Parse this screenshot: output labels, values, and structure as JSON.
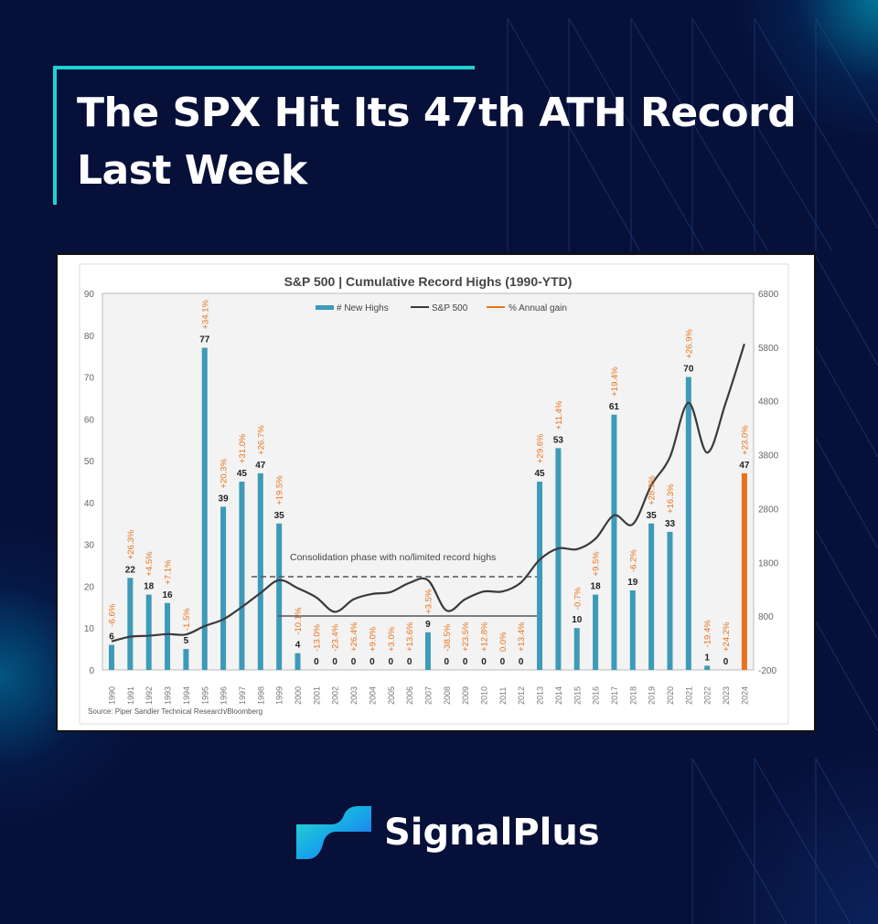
{
  "header": {
    "title": "The SPX Hit Its 47th ATH Record Last Week"
  },
  "brand": {
    "name": "SignalPlus"
  },
  "colors": {
    "bg": "#061039",
    "accent": "#19d3d6",
    "bar": "#3d9ab8",
    "bar_highlight": "#e8731c",
    "gain": "#e8731c",
    "line": "#3a3a3a"
  },
  "chart_data": {
    "type": "bar",
    "title": "S&P 500 | Cumulative Record Highs (1990-YTD)",
    "legend": [
      "# New Highs",
      "S&P 500",
      "% Annual gain"
    ],
    "legend_position": "top-center",
    "categories": [
      "1990",
      "1991",
      "1992",
      "1993",
      "1994",
      "1995",
      "1996",
      "1997",
      "1998",
      "1999",
      "2000",
      "2001",
      "2002",
      "2003",
      "2004",
      "2005",
      "2006",
      "2007",
      "2008",
      "2009",
      "2010",
      "2011",
      "2012",
      "2013",
      "2014",
      "2015",
      "2016",
      "2017",
      "2018",
      "2019",
      "2020",
      "2021",
      "2022",
      "2023",
      "2024"
    ],
    "series": [
      {
        "name": "# New Highs",
        "axis": "left",
        "values": [
          6,
          22,
          18,
          16,
          5,
          77,
          39,
          45,
          47,
          35,
          4,
          0,
          0,
          0,
          0,
          0,
          0,
          9,
          0,
          0,
          0,
          0,
          0,
          45,
          53,
          10,
          18,
          61,
          19,
          35,
          33,
          70,
          1,
          0,
          47
        ]
      },
      {
        "name": "S&P 500",
        "axis": "right",
        "values": [
          330,
          417,
          436,
          466,
          459,
          615,
          740,
          970,
          1229,
          1469,
          1320,
          1148,
          880,
          1112,
          1212,
          1248,
          1418,
          1468,
          903,
          1115,
          1258,
          1258,
          1426,
          1848,
          2059,
          2044,
          2239,
          2674,
          2507,
          3231,
          3756,
          4766,
          3840,
          4770,
          5860
        ]
      },
      {
        "name": "% Annual gain",
        "labels": [
          "-6.6%",
          "+26.3%",
          "+4.5%",
          "+7.1%",
          "-1.5%",
          "+34.1%",
          "+20.3%",
          "+31.0%",
          "+26.7%",
          "+19.5%",
          "-10.1%",
          "-13.0%",
          "-23.4%",
          "+26.4%",
          "+9.0%",
          "+3.0%",
          "+13.6%",
          "+3.5%",
          "-38.5%",
          "+23.5%",
          "+12.8%",
          "0.0%",
          "+13.4%",
          "+29.6%",
          "+11.4%",
          "-0.7%",
          "+9.5%",
          "+19.4%",
          "-6.2%",
          "+28.9%",
          "+16.3%",
          "+26.9%",
          "-19.4%",
          "+24.2%",
          "+23.0%"
        ]
      }
    ],
    "left_ticks": [
      "0",
      "10",
      "20",
      "30",
      "40",
      "50",
      "60",
      "70",
      "80",
      "90"
    ],
    "right_ticks": [
      "-200",
      "800",
      "1800",
      "2800",
      "3800",
      "4800",
      "5800",
      "6800"
    ],
    "ylim": [
      0,
      90
    ],
    "y2lim": [
      -200,
      6800
    ],
    "annotation": "Consolidation phase with no/limited record highs",
    "source": "Source: Piper Sandler Technical Research/Bloomberg"
  }
}
